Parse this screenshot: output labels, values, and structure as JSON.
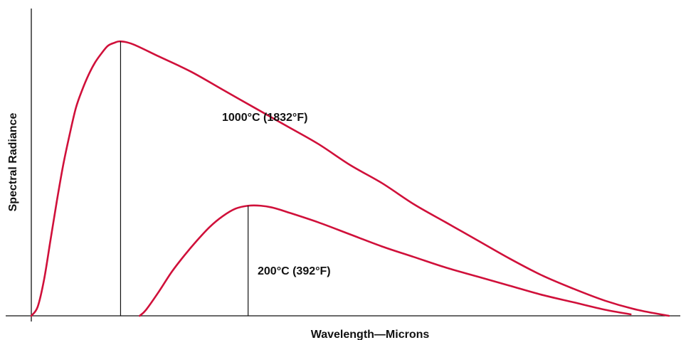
{
  "chart_data": {
    "type": "line",
    "title": "",
    "xlabel": "Wavelength—Microns",
    "ylabel": "Spectral Radiance",
    "xlim": [
      0,
      100
    ],
    "ylim": [
      0,
      100
    ],
    "grid": false,
    "legend": "none",
    "series": [
      {
        "name": "1000°C (1832°F)",
        "color": "#d0103a",
        "peak_x": 14,
        "peak_y": 91,
        "points": [
          [
            0,
            0
          ],
          [
            1,
            3
          ],
          [
            2,
            12
          ],
          [
            3,
            25
          ],
          [
            4,
            38
          ],
          [
            5,
            50
          ],
          [
            6,
            60
          ],
          [
            7,
            69
          ],
          [
            8,
            75
          ],
          [
            9,
            80
          ],
          [
            10,
            84
          ],
          [
            11,
            87
          ],
          [
            12,
            89.5
          ],
          [
            13,
            90.5
          ],
          [
            14,
            91
          ],
          [
            16,
            90
          ],
          [
            20,
            86
          ],
          [
            25,
            81
          ],
          [
            30,
            75
          ],
          [
            35,
            69
          ],
          [
            40,
            63
          ],
          [
            45,
            57
          ],
          [
            50,
            50
          ],
          [
            55,
            44
          ],
          [
            60,
            37
          ],
          [
            65,
            31
          ],
          [
            70,
            25
          ],
          [
            75,
            19
          ],
          [
            80,
            13.5
          ],
          [
            85,
            9
          ],
          [
            90,
            5
          ],
          [
            95,
            2
          ],
          [
            100,
            0
          ]
        ]
      },
      {
        "name": "200°C (392°F)",
        "color": "#d0103a",
        "peak_x": 34,
        "peak_y": 36.5,
        "points": [
          [
            17,
            0
          ],
          [
            18,
            2
          ],
          [
            20,
            8
          ],
          [
            22,
            14.5
          ],
          [
            24,
            20
          ],
          [
            26,
            25
          ],
          [
            28,
            29.5
          ],
          [
            30,
            33
          ],
          [
            32,
            35.5
          ],
          [
            34,
            36.5
          ],
          [
            36,
            36.5
          ],
          [
            38,
            35.8
          ],
          [
            40,
            34.5
          ],
          [
            45,
            31
          ],
          [
            50,
            27
          ],
          [
            55,
            23
          ],
          [
            60,
            19.5
          ],
          [
            65,
            16
          ],
          [
            70,
            13
          ],
          [
            75,
            10
          ],
          [
            80,
            7
          ],
          [
            85,
            4.5
          ],
          [
            90,
            2
          ],
          [
            94,
            0.5
          ]
        ]
      }
    ]
  }
}
